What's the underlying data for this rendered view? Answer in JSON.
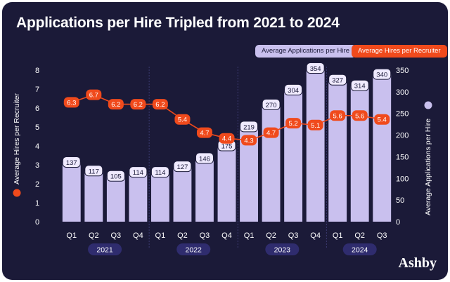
{
  "title": "Applications per Hire Tripled from 2021 to 2024",
  "brand": "Ashby",
  "colors": {
    "background": "#1b1a38",
    "bars": "#c9c0ee",
    "line": "#f04a1c",
    "year_pill": "#2f2c6e"
  },
  "chart_data": {
    "type": "bar",
    "title": "Applications per Hire Tripled from 2021 to 2024",
    "categories": [
      "Q1",
      "Q2",
      "Q3",
      "Q4",
      "Q1",
      "Q2",
      "Q3",
      "Q4",
      "Q1",
      "Q2",
      "Q3",
      "Q4",
      "Q1",
      "Q2",
      "Q3"
    ],
    "years": [
      {
        "label": "2021",
        "quarters": 4
      },
      {
        "label": "2022",
        "quarters": 4
      },
      {
        "label": "2023",
        "quarters": 4
      },
      {
        "label": "2024",
        "quarters": 3
      }
    ],
    "series": [
      {
        "name": "Average Applications per Hire",
        "type": "bar",
        "axis": "right",
        "values": [
          137,
          117,
          105,
          114,
          114,
          127,
          146,
          175,
          219,
          270,
          304,
          354,
          327,
          314,
          340
        ]
      },
      {
        "name": "Average Hires per Recruiter",
        "type": "line",
        "axis": "left",
        "values": [
          6.3,
          6.7,
          6.2,
          6.2,
          6.2,
          5.4,
          4.7,
          4.4,
          4.3,
          4.7,
          5.2,
          5.1,
          5.6,
          5.6,
          5.4
        ]
      }
    ],
    "ylabel_left": "Average Hires per Recruiter",
    "ylabel_right": "Average Applications per Hire",
    "ylim_left": [
      0,
      8
    ],
    "yticks_left": [
      0,
      1,
      2,
      3,
      4,
      5,
      6,
      7,
      8
    ],
    "ylim_right": [
      0,
      350
    ],
    "yticks_right": [
      0,
      50,
      100,
      150,
      200,
      250,
      300,
      350
    ],
    "legend_placement": "top-right"
  }
}
